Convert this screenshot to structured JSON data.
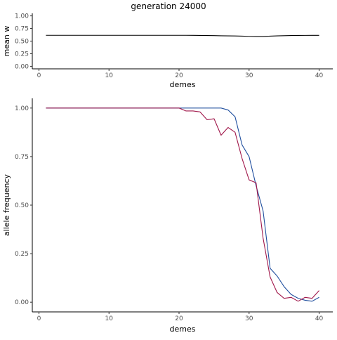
{
  "title": "generation 24000",
  "chart_data": [
    {
      "type": "line",
      "ylabel": "mean w",
      "xlabel": "demes",
      "xlim": [
        -0.95,
        41.95
      ],
      "ylim": [
        -0.05,
        1.05
      ],
      "xticks": [
        0,
        10,
        20,
        30,
        40
      ],
      "yticks": [
        0.0,
        0.25,
        0.5,
        0.75,
        1.0
      ],
      "ytick_labels": [
        "0.00",
        "0.25",
        "0.50",
        "0.75",
        "1.00"
      ],
      "grid": false,
      "series": [
        {
          "color": "#000000",
          "x": [
            1,
            2,
            3,
            4,
            5,
            6,
            7,
            8,
            9,
            10,
            11,
            12,
            13,
            14,
            15,
            16,
            17,
            18,
            19,
            20,
            21,
            22,
            23,
            24,
            25,
            26,
            27,
            28,
            29,
            30,
            31,
            32,
            33,
            34,
            35,
            36,
            37,
            38,
            39,
            40
          ],
          "values": [
            0.615,
            0.615,
            0.615,
            0.615,
            0.615,
            0.615,
            0.615,
            0.615,
            0.615,
            0.615,
            0.615,
            0.615,
            0.615,
            0.615,
            0.615,
            0.615,
            0.615,
            0.615,
            0.615,
            0.615,
            0.615,
            0.614,
            0.612,
            0.611,
            0.609,
            0.605,
            0.603,
            0.602,
            0.598,
            0.594,
            0.592,
            0.592,
            0.598,
            0.604,
            0.607,
            0.61,
            0.612,
            0.613,
            0.614,
            0.614
          ]
        }
      ]
    },
    {
      "type": "line",
      "ylabel": "allele frequency",
      "xlabel": "demes",
      "xlim": [
        -0.95,
        41.95
      ],
      "ylim": [
        -0.05,
        1.05
      ],
      "xticks": [
        0,
        10,
        20,
        30,
        40
      ],
      "yticks": [
        0.0,
        0.25,
        0.5,
        0.75,
        1.0
      ],
      "ytick_labels": [
        "0.00",
        "0.25",
        "0.50",
        "0.75",
        "1.00"
      ],
      "grid": false,
      "series": [
        {
          "color": "#1f4e9e",
          "x": [
            1,
            2,
            3,
            4,
            5,
            6,
            7,
            8,
            9,
            10,
            11,
            12,
            13,
            14,
            15,
            16,
            17,
            18,
            19,
            20,
            21,
            22,
            23,
            24,
            25,
            26,
            27,
            28,
            29,
            30,
            31,
            32,
            33,
            34,
            35,
            36,
            37,
            38,
            39,
            40
          ],
          "values": [
            1.0,
            1.0,
            1.0,
            1.0,
            1.0,
            1.0,
            1.0,
            1.0,
            1.0,
            1.0,
            1.0,
            1.0,
            1.0,
            1.0,
            1.0,
            1.0,
            1.0,
            1.0,
            1.0,
            1.0,
            1.0,
            1.0,
            1.0,
            1.0,
            1.0,
            1.0,
            0.99,
            0.955,
            0.81,
            0.75,
            0.6,
            0.47,
            0.175,
            0.135,
            0.08,
            0.04,
            0.02,
            0.01,
            0.005,
            0.025
          ]
        },
        {
          "color": "#a0174a",
          "x": [
            1,
            2,
            3,
            4,
            5,
            6,
            7,
            8,
            9,
            10,
            11,
            12,
            13,
            14,
            15,
            16,
            17,
            18,
            19,
            20,
            21,
            22,
            23,
            24,
            25,
            26,
            27,
            28,
            29,
            30,
            31,
            32,
            33,
            34,
            35,
            36,
            37,
            38,
            39,
            40
          ],
          "values": [
            1.0,
            1.0,
            1.0,
            1.0,
            1.0,
            1.0,
            1.0,
            1.0,
            1.0,
            1.0,
            1.0,
            1.0,
            1.0,
            1.0,
            1.0,
            1.0,
            1.0,
            1.0,
            1.0,
            1.0,
            0.985,
            0.985,
            0.98,
            0.94,
            0.945,
            0.86,
            0.9,
            0.875,
            0.74,
            0.63,
            0.615,
            0.33,
            0.13,
            0.05,
            0.02,
            0.025,
            0.005,
            0.025,
            0.02,
            0.06
          ]
        }
      ]
    }
  ]
}
